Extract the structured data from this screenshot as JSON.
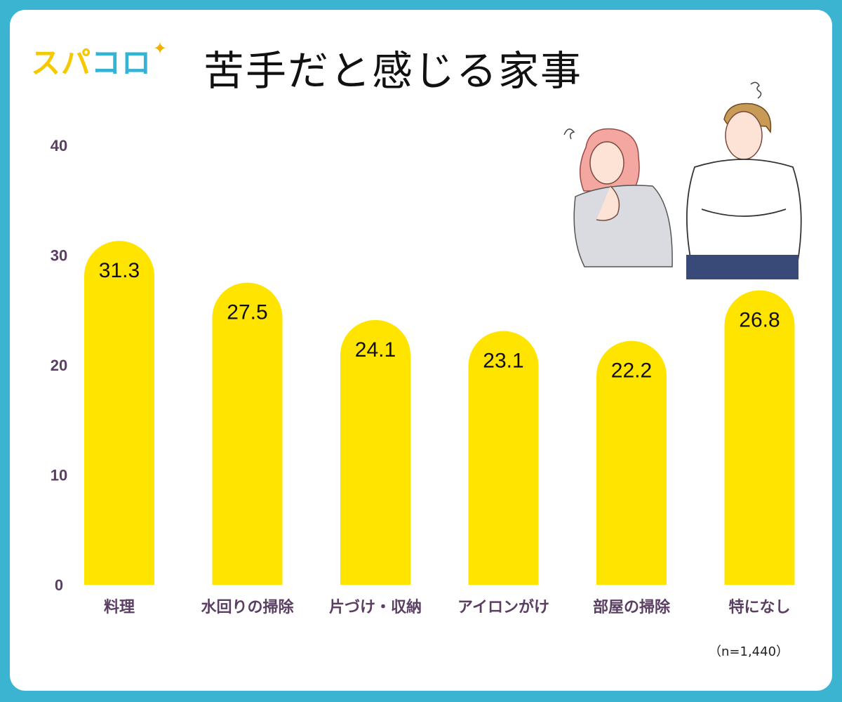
{
  "logo": {
    "part1": "スパ",
    "part2": "コロ",
    "sparkle": "✦"
  },
  "colors": {
    "bar": "#ffe400",
    "frame": "#3bb4d2",
    "axis_text": "#5a3f63",
    "value_text": "#111111"
  },
  "chart_data": {
    "type": "bar",
    "title": "苦手だと感じる家事",
    "categories": [
      "料理",
      "水回りの掃除",
      "片づけ・収納",
      "アイロンがけ",
      "部屋の掃除",
      "特になし"
    ],
    "values": [
      31.3,
      27.5,
      24.1,
      23.1,
      22.2,
      26.8
    ],
    "value_labels": [
      "31.3",
      "27.5",
      "24.1",
      "23.1",
      "22.2",
      "26.8"
    ],
    "yticks": [
      0,
      10,
      20,
      30,
      40
    ],
    "ylim": [
      0,
      40
    ],
    "xlabel": "",
    "ylabel": "",
    "grid": false,
    "note": "（n=1,440）"
  }
}
